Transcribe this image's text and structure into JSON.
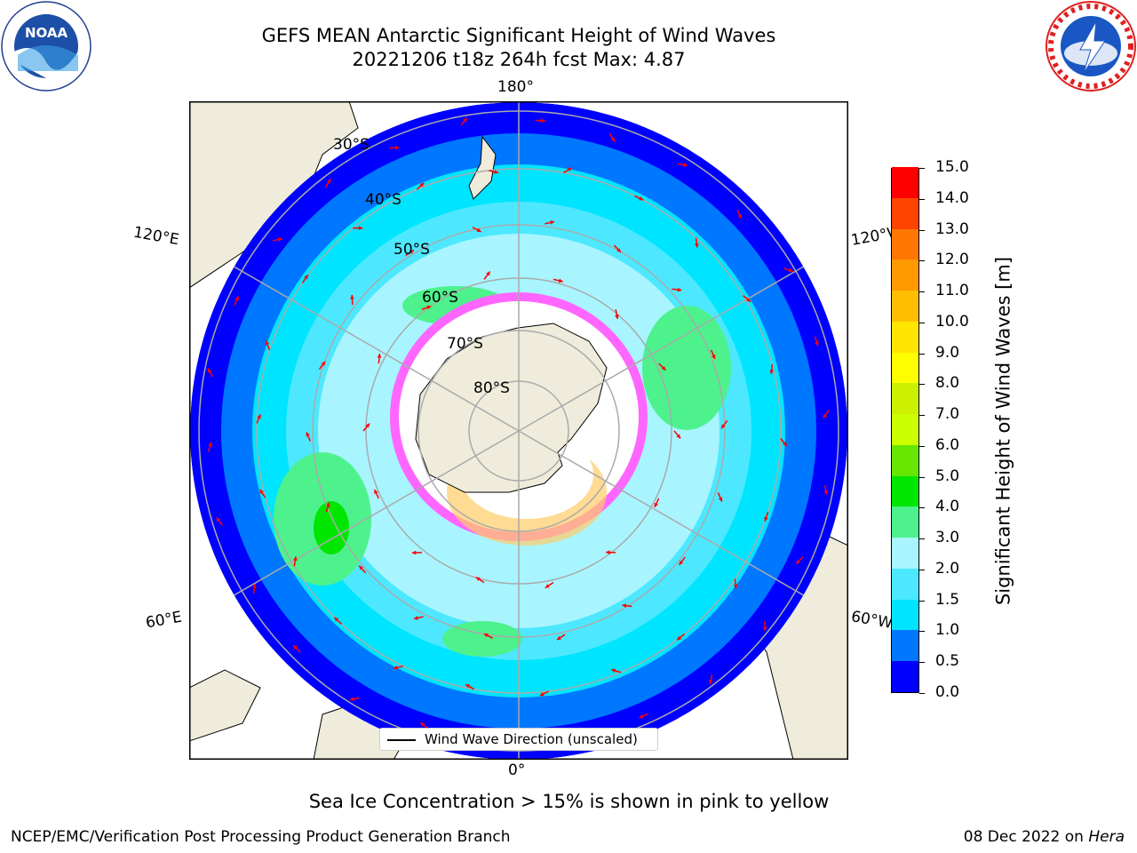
{
  "title": {
    "line1": "GEFS MEAN Antarctic Significant Height of Wind Waves",
    "line2": "20221206 t18z 264h fcst   Max: 4.87"
  },
  "logos": {
    "left": "noaa-logo",
    "left_text": "NOAA",
    "right": "nws-logo"
  },
  "map": {
    "projection": "south-polar-stereographic",
    "longitude_labels": [
      "180°",
      "120°E",
      "120°W",
      "60°E",
      "60°W",
      "0°"
    ],
    "latitude_labels": [
      "30°S",
      "40°S",
      "50°S",
      "60°S",
      "70°S",
      "80°S"
    ],
    "arrow_color": "#ff0000",
    "land_color": "#efecdc",
    "sea_ice_color_range": [
      "#ff33ff",
      "#ffd24d"
    ]
  },
  "legend": {
    "label": "Wind Wave Direction (unscaled)"
  },
  "colorbar": {
    "label": "Significant Height of Wind Waves [m]",
    "ticks": [
      "0.0",
      "0.5",
      "1.0",
      "1.5",
      "2.0",
      "3.0",
      "4.0",
      "5.0",
      "6.0",
      "7.0",
      "8.0",
      "9.0",
      "10.0",
      "11.0",
      "12.0",
      "13.0",
      "14.0",
      "15.0"
    ],
    "colors": [
      "#0000ff",
      "#0077ff",
      "#00e5ff",
      "#4de8ff",
      "#a8f5ff",
      "#4df28c",
      "#00e600",
      "#66e600",
      "#ccff00",
      "#ccf000",
      "#ffff00",
      "#ffe600",
      "#ffbf00",
      "#ff9900",
      "#ff7700",
      "#ff4400",
      "#ff0000"
    ]
  },
  "subtitle": "Sea Ice Concentration > 15% is shown in pink to yellow",
  "footer": {
    "left": "NCEP/EMC/Verification Post Processing Product Generation Branch",
    "date": "08 Dec 2022 on ",
    "machine": "Hera"
  }
}
